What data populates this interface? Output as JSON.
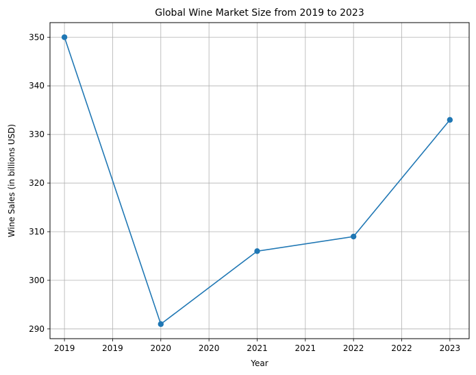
{
  "chart_data": {
    "type": "line",
    "title": "Global Wine Market Size from 2019 to 2023",
    "xlabel": "Year",
    "ylabel": "Wine Sales (in billions USD)",
    "x": [
      2019,
      2020,
      2021,
      2022,
      2023
    ],
    "series": [
      {
        "values": [
          350,
          291,
          306,
          309,
          333
        ],
        "color": "#1f77b4"
      }
    ],
    "xlim": [
      2018.85,
      2023.2
    ],
    "ylim": [
      288,
      353
    ],
    "x_tick_labels": [
      "2019",
      "2019",
      "2020",
      "2020",
      "2021",
      "2021",
      "2022",
      "2022",
      "2023"
    ],
    "y_ticks": [
      290,
      300,
      310,
      320,
      330,
      340,
      350
    ],
    "grid": true,
    "grid_color": "#b0b0b0",
    "markers": true
  }
}
